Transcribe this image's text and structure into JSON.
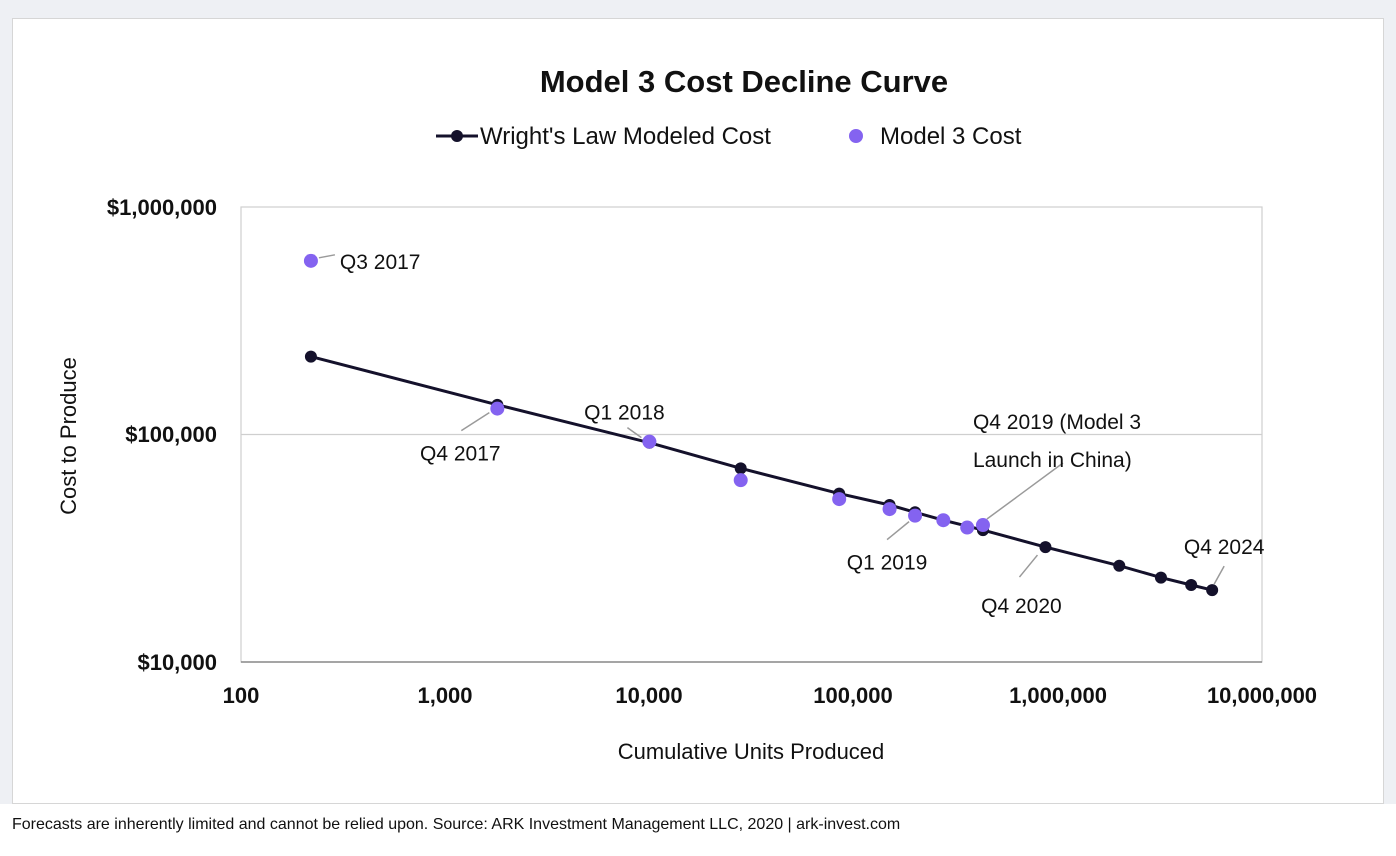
{
  "chart_data": {
    "type": "scatter",
    "title": "Model 3 Cost Decline Curve",
    "xlabel": "Cumulative Units Produced",
    "ylabel": "Cost to Produce",
    "xscale": "log",
    "yscale": "log",
    "xlim": [
      100,
      10000000
    ],
    "ylim": [
      10000,
      1000000
    ],
    "xticks": [
      "100",
      "1,000",
      "10,000",
      "100,000",
      "1,000,000",
      "10,000,000"
    ],
    "yticks": [
      "$10,000",
      "$100,000",
      "$1,000,000"
    ],
    "legend": [
      "Wright's Law Modeled Cost",
      "Model 3 Cost"
    ],
    "colors": {
      "modeled": "#14112b",
      "actual": "#8463f0"
    },
    "series": [
      {
        "name": "Wright's Law Modeled Cost",
        "style": "line+markers",
        "x": [
          220,
          1800,
          10000,
          28000,
          85000,
          150000,
          200000,
          275000,
          430000,
          870000,
          2000000,
          3200000,
          4500000,
          5700000
        ],
        "y": [
          220000,
          135000,
          92000,
          71000,
          55000,
          49000,
          45500,
          42000,
          38000,
          32000,
          26500,
          23500,
          21800,
          20700
        ]
      },
      {
        "name": "Model 3 Cost",
        "style": "markers",
        "x": [
          220,
          1800,
          10000,
          28000,
          85000,
          150000,
          200000,
          275000,
          360000,
          430000
        ],
        "y": [
          580000,
          130000,
          93000,
          63000,
          52000,
          47000,
          44000,
          42000,
          39000,
          40000
        ]
      }
    ],
    "annotations": [
      {
        "text": "Q3 2017",
        "x": 220,
        "y": 580000
      },
      {
        "text": "Q4 2017",
        "x": 1800,
        "y": 130000
      },
      {
        "text": "Q1 2018",
        "x": 10000,
        "y": 93000
      },
      {
        "text": "Q1 2019",
        "x": 200000,
        "y": 44000
      },
      {
        "text": "Q4 2019 (Model 3",
        "text2": "Launch in China)",
        "x": 430000,
        "y": 40000
      },
      {
        "text": "Q4 2020",
        "x": 870000,
        "y": 32000
      },
      {
        "text": "Q4 2024",
        "x": 5700000,
        "y": 20700
      }
    ]
  },
  "footer": "Forecasts are inherently limited and cannot be relied upon. Source: ARK Investment Management LLC, 2020  |  ark-invest.com"
}
